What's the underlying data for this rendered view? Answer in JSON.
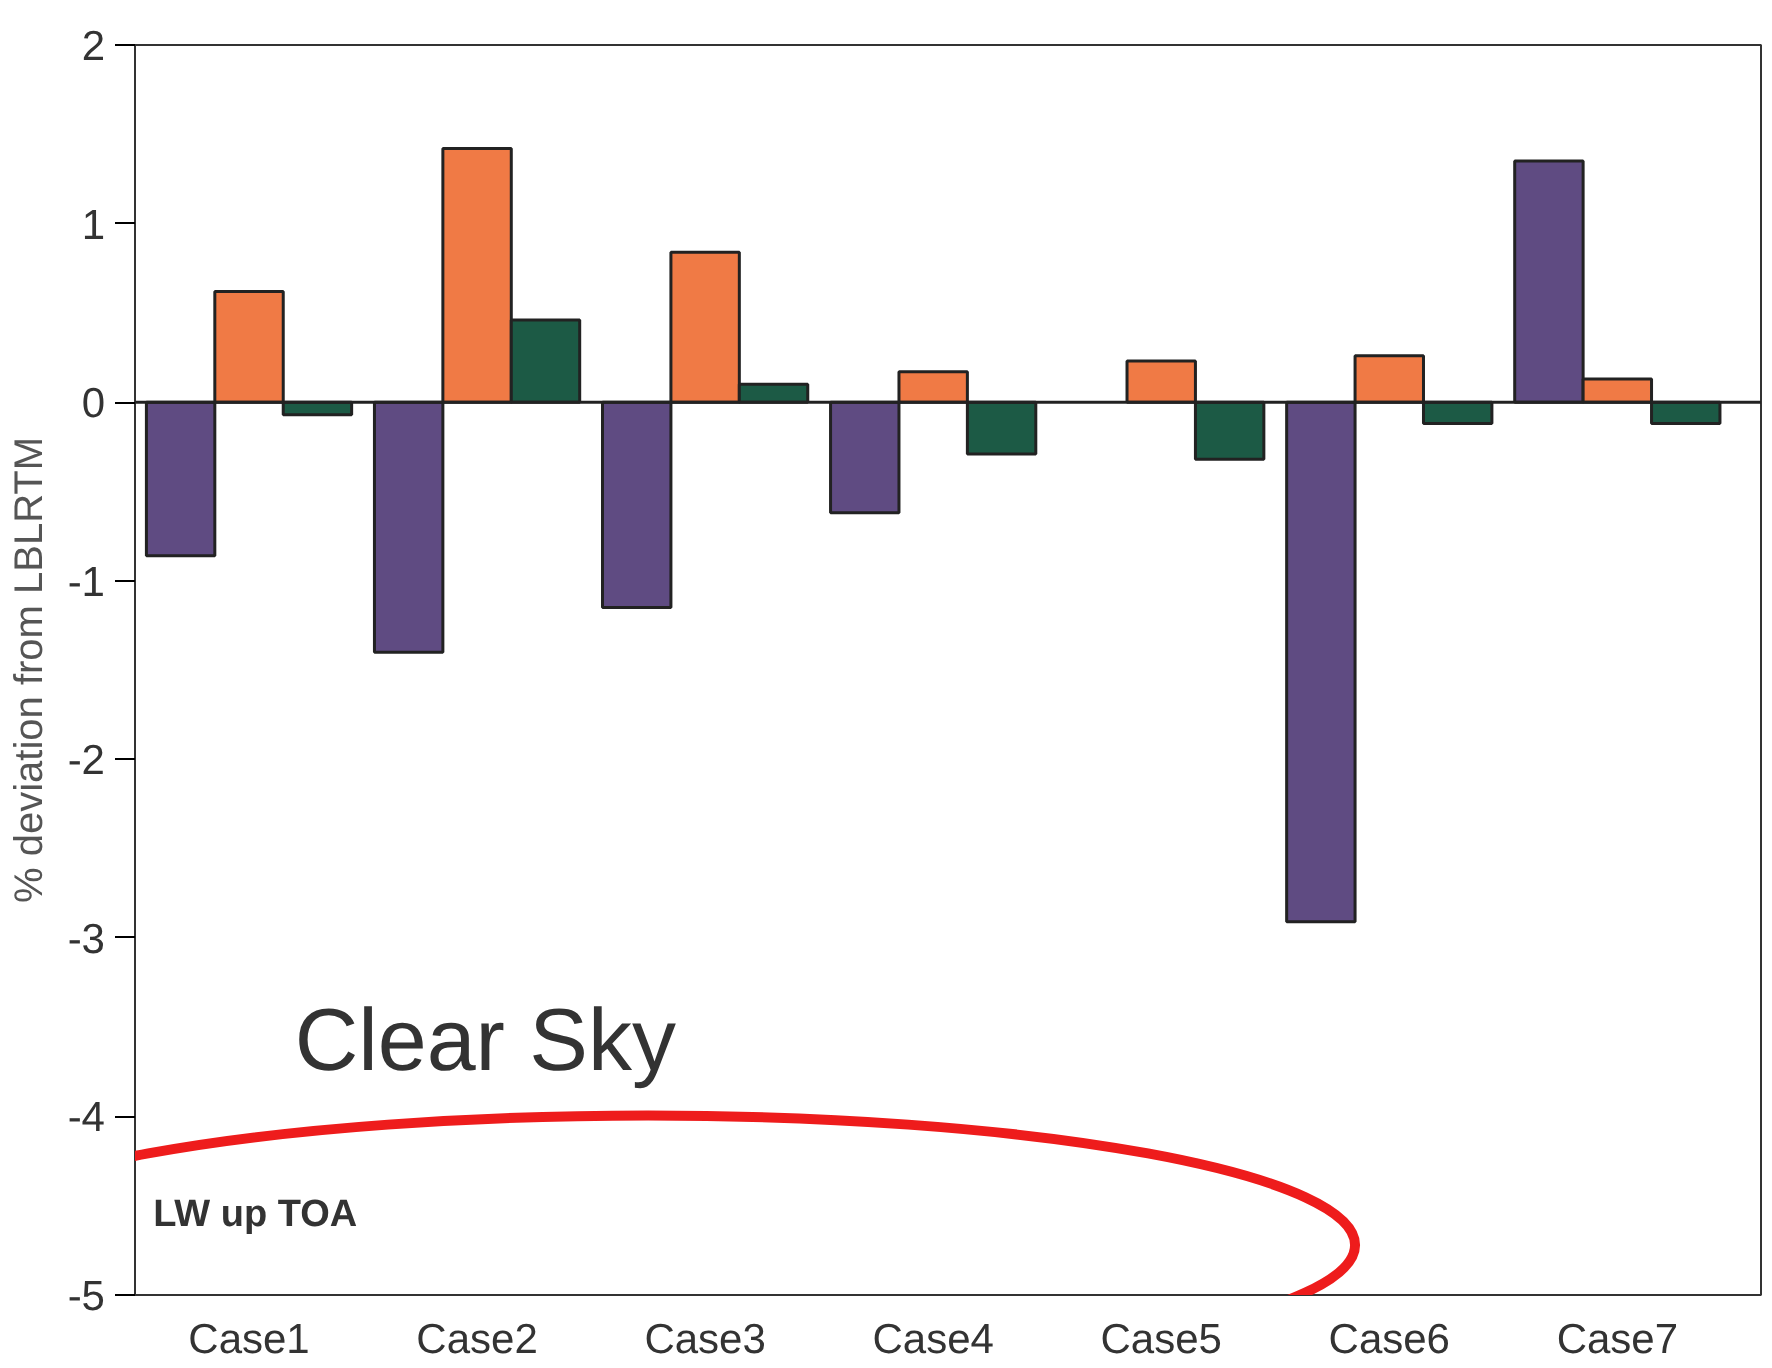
{
  "chart_data": {
    "type": "bar",
    "ylabel": "% deviation from LBLRTM",
    "categories": [
      "Case1",
      "Case2",
      "Case3",
      "Case4",
      "Case5",
      "Case6",
      "Case7"
    ],
    "series": [
      {
        "color": "#5f4b82",
        "values": [
          -0.86,
          -1.4,
          -1.15,
          -0.62,
          null,
          -2.91,
          1.35
        ]
      },
      {
        "color": "#f07a45",
        "values": [
          0.62,
          1.42,
          0.84,
          0.17,
          0.23,
          0.26,
          0.13
        ]
      },
      {
        "color": "#1c5a45",
        "values": [
          -0.07,
          0.46,
          0.1,
          -0.29,
          -0.32,
          -0.12,
          -0.12
        ]
      }
    ],
    "ylim": [
      -5,
      2
    ],
    "yticks": [
      -5,
      -4,
      -3,
      -2,
      -1,
      0,
      1,
      2
    ],
    "annotations": [
      "Clear Sky",
      "LW up TOA"
    ]
  }
}
